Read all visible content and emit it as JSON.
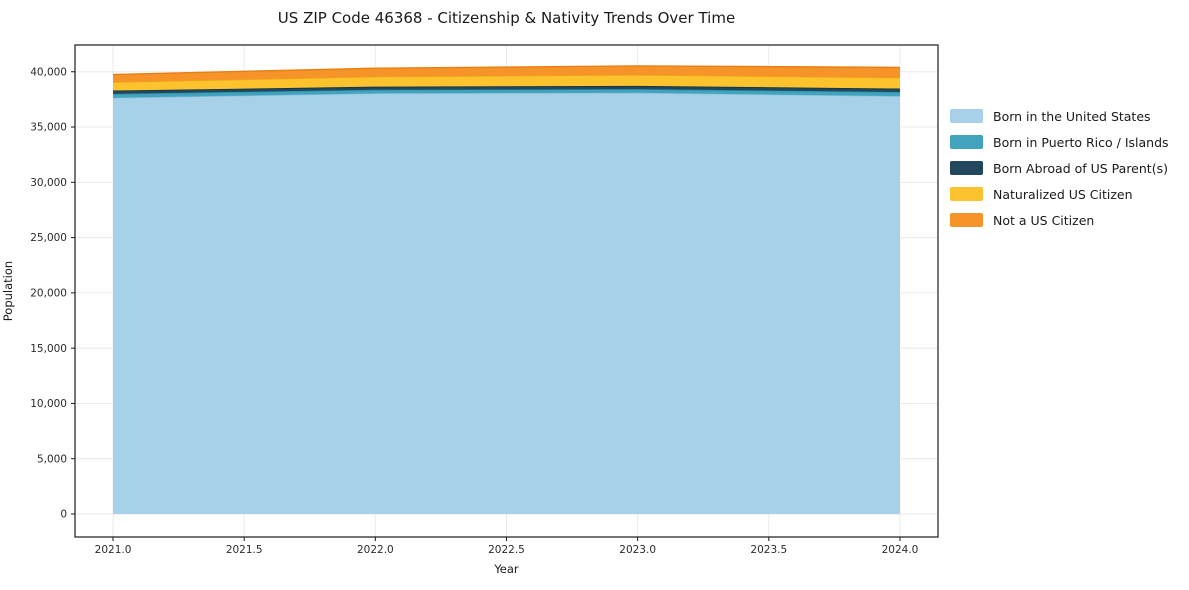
{
  "title": "US ZIP Code 46368 - Citizenship & Nativity Trends Over Time",
  "chart_data": {
    "type": "area",
    "stacked": true,
    "title": "US ZIP Code 46368 - Citizenship & Nativity Trends Over Time",
    "xlabel": "Year",
    "ylabel": "Population",
    "x": [
      2021,
      2022,
      2023,
      2024
    ],
    "series": [
      {
        "name": "Born in the United States",
        "values": [
          37650,
          38050,
          38100,
          37800
        ],
        "fill": "#a6d1e8",
        "edge": "#85bcd9"
      },
      {
        "name": "Born in Puerto Rico / Islands",
        "values": [
          350,
          320,
          330,
          370
        ],
        "fill": "#41a3bd",
        "edge": "#2b8ea8"
      },
      {
        "name": "Born Abroad of US Parent(s)",
        "values": [
          300,
          280,
          290,
          310
        ],
        "fill": "#21475c",
        "edge": "#152f3e"
      },
      {
        "name": "Naturalized US Citizen",
        "values": [
          750,
          900,
          990,
          980
        ],
        "fill": "#fcc32f",
        "edge": "#eeac15"
      },
      {
        "name": "Not a US Citizen",
        "values": [
          700,
          770,
          820,
          930
        ],
        "fill": "#f79429",
        "edge": "#e87f12"
      }
    ],
    "xlim": [
      2020.855,
      2024.145
    ],
    "ylim": [
      -2080,
      42420
    ],
    "xticks": {
      "values": [
        2021.0,
        2021.5,
        2022.0,
        2022.5,
        2023.0,
        2023.5,
        2024.0
      ],
      "labels": [
        "2021.0",
        "2021.5",
        "2022.0",
        "2022.5",
        "2023.0",
        "2023.5",
        "2024.0"
      ]
    },
    "yticks": {
      "values": [
        0,
        5000,
        10000,
        15000,
        20000,
        25000,
        30000,
        35000,
        40000
      ],
      "labels": [
        "0",
        "5,000",
        "10,000",
        "15,000",
        "20,000",
        "25,000",
        "30,000",
        "35,000",
        "40,000"
      ]
    },
    "grid": true,
    "legend_position": "right",
    "colors": {
      "grid": "#ebebeb",
      "spine": "#1a1a1a",
      "tick_label": "#2b2b2b",
      "background": "#ffffff"
    }
  }
}
